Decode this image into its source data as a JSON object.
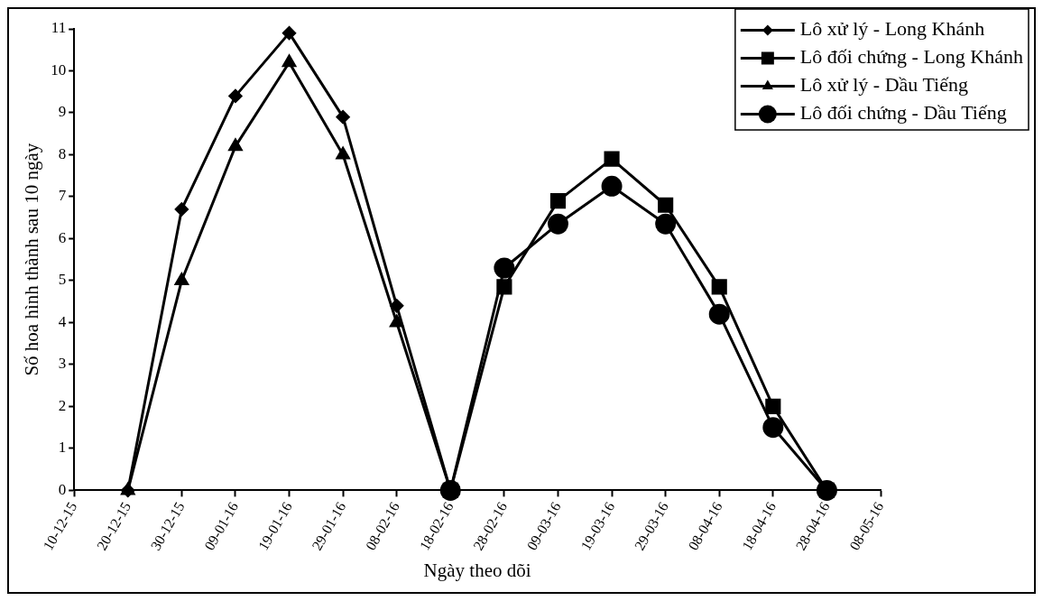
{
  "chart_data": {
    "type": "line",
    "xlabel": "Ngày theo dõi",
    "ylabel": "Số hoa hình thành sau 10 ngày",
    "categories": [
      "10-12-15",
      "20-12-15",
      "30-12-15",
      "09-01-16",
      "19-01-16",
      "29-01-16",
      "08-02-16",
      "18-02-16",
      "28-02-16",
      "09-03-16",
      "19-03-16",
      "29-03-16",
      "08-04-16",
      "18-04-16",
      "28-04-16",
      "08-05-16"
    ],
    "series": [
      {
        "name": "Lô xử lý - Long Khánh",
        "color": "#000000",
        "marker": "diamond",
        "values": [
          null,
          0,
          6.7,
          9.4,
          10.9,
          8.9,
          4.4,
          0,
          null,
          null,
          null,
          null,
          null,
          null,
          null,
          null
        ]
      },
      {
        "name": "Lô đối chứng - Long Khánh",
        "color": "#000000",
        "marker": "square",
        "values": [
          null,
          null,
          null,
          null,
          null,
          null,
          null,
          0,
          4.85,
          6.9,
          7.9,
          6.8,
          4.85,
          2.0,
          0,
          null
        ]
      },
      {
        "name": "Lô xử lý - Dầu Tiếng",
        "color": "#000000",
        "marker": "triangle",
        "values": [
          null,
          0,
          5.0,
          8.2,
          10.2,
          8.0,
          4.0,
          0,
          null,
          null,
          null,
          null,
          null,
          null,
          null,
          null
        ]
      },
      {
        "name": "Lô đối chứng - Dầu Tiếng",
        "color": "#000000",
        "marker": "circle",
        "values": [
          null,
          null,
          null,
          null,
          null,
          null,
          null,
          0,
          5.3,
          6.35,
          7.25,
          6.35,
          4.2,
          1.5,
          0,
          null
        ]
      }
    ],
    "ylim": [
      0,
      11
    ],
    "yticks": [
      0,
      1,
      2,
      3,
      4,
      5,
      6,
      7,
      8,
      9,
      10,
      11
    ],
    "grid": false,
    "legend": "top right"
  }
}
